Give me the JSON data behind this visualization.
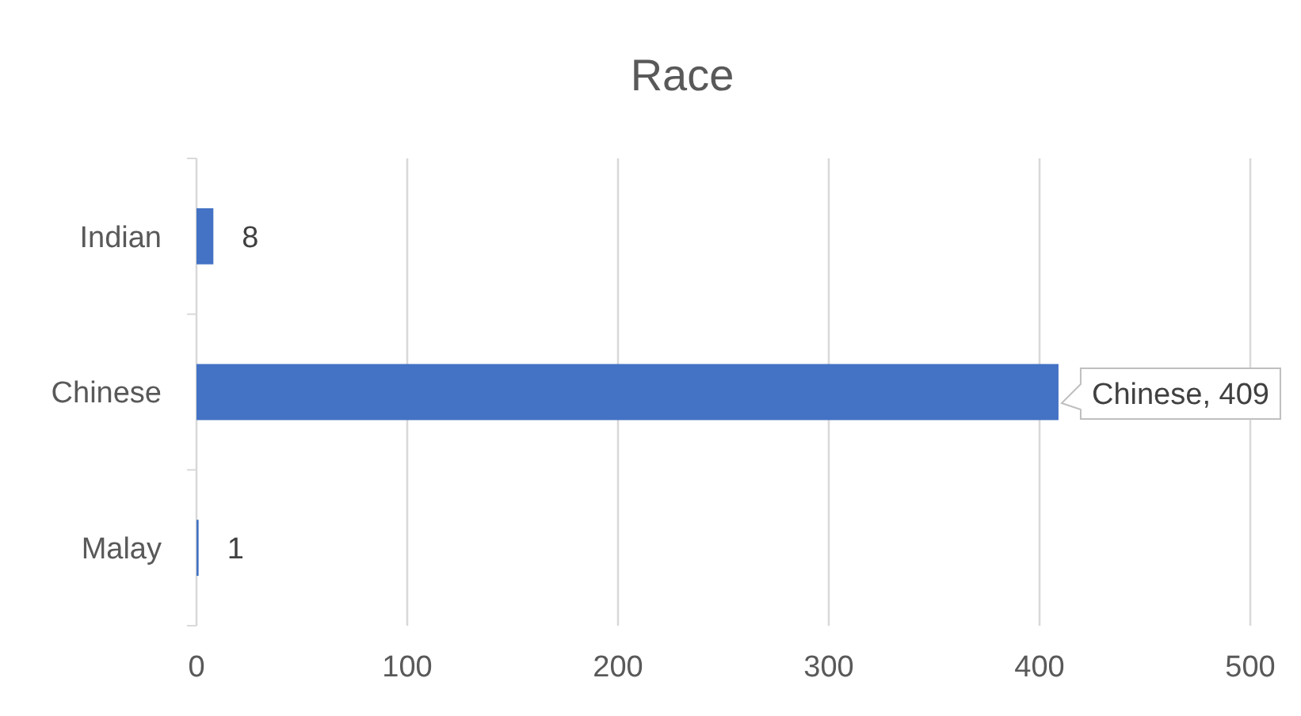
{
  "chart_data": {
    "type": "bar",
    "orientation": "horizontal",
    "title": "Race",
    "categories": [
      "Indian",
      "Chinese",
      "Malay"
    ],
    "values": [
      8,
      409,
      1
    ],
    "value_labels": [
      "8",
      "Chinese, 409",
      "1"
    ],
    "color": "#4472c4",
    "xlim": [
      0,
      500
    ],
    "xticks": [
      0,
      100,
      200,
      300,
      400,
      500
    ],
    "grid": "x"
  }
}
